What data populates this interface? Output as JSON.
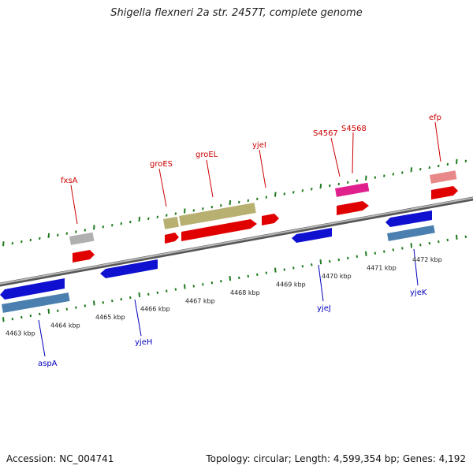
{
  "title": "Shigella flexneri 2a str. 2457T, complete genome",
  "footer": {
    "accession": "Accession: NC_004741",
    "summary": "Topology: circular; Length: 4,599,354 bp; Genes: 4,192"
  },
  "colors": {
    "backbone": "#8a8a8a",
    "ticks": "#1e7a1e",
    "label_top": "#cc0000",
    "label_bottom": "#0000bb",
    "cds_red": "#e10000",
    "gene_blue": "#1010d0",
    "gene_steel": "#4a7fb0",
    "gene_olive": "#b8b070",
    "gene_grey": "#b0b0b0",
    "gene_pink": "#e0208c",
    "gene_salmon": "#e88888"
  },
  "axis": {
    "unit": "kbp",
    "ticks": [
      {
        "label": "4463 kbp",
        "value": 4463
      },
      {
        "label": "4464 kbp",
        "value": 4464
      },
      {
        "label": "4465 kbp",
        "value": 4465
      },
      {
        "label": "4466 kbp",
        "value": 4466
      },
      {
        "label": "4467 kbp",
        "value": 4467
      },
      {
        "label": "4468 kbp",
        "value": 4468
      },
      {
        "label": "4469 kbp",
        "value": 4469
      },
      {
        "label": "4470 kbp",
        "value": 4470
      },
      {
        "label": "4471 kbp",
        "value": 4471
      },
      {
        "label": "4472 kbp",
        "value": 4472
      }
    ]
  },
  "labels_top": [
    "fxsA",
    "groES",
    "groEL",
    "yjeI",
    "S4567",
    "S4568",
    "efp"
  ],
  "labels_bottom": [
    "aspA",
    "yjeH",
    "yjeJ",
    "yjeK"
  ]
}
